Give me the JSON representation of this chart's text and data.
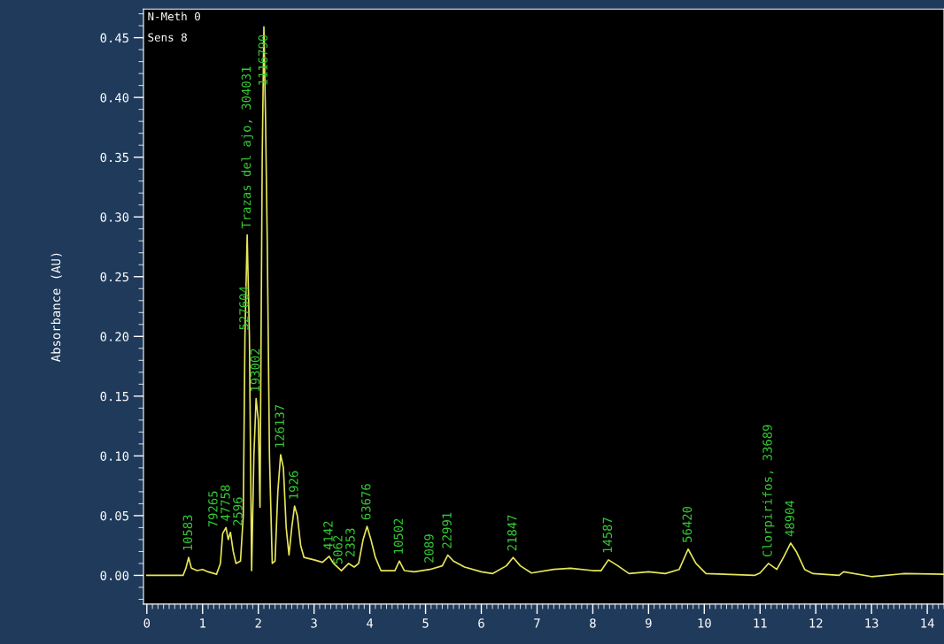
{
  "chart_data": {
    "type": "line",
    "ylabel": "Absorbance (AU)",
    "xlim": [
      -0.06,
      14.3
    ],
    "ylim": [
      -0.024,
      0.474
    ],
    "xticks": [
      0,
      1,
      2,
      3,
      4,
      5,
      6,
      7,
      8,
      9,
      10,
      11,
      12,
      13,
      14
    ],
    "yticks": [
      {
        "value": 0,
        "label": "0.00"
      },
      {
        "value": 0.05,
        "label": "0.05"
      },
      {
        "value": 0.1,
        "label": "0.10"
      },
      {
        "value": 0.15,
        "label": "0.15"
      },
      {
        "value": 0.2,
        "label": "0.20"
      },
      {
        "value": 0.25,
        "label": "0.25"
      },
      {
        "value": 0.3,
        "label": "0.30"
      },
      {
        "value": 0.35,
        "label": "0.35"
      },
      {
        "value": 0.4,
        "label": "0.40"
      },
      {
        "value": 0.45,
        "label": "0.45"
      }
    ],
    "grid": false,
    "marker": "none",
    "line_style": "solid",
    "series": [
      {
        "color": "#e6e65c",
        "x": [
          0,
          0.65,
          0.7,
          0.75,
          0.8,
          0.9,
          1.0,
          1.1,
          1.25,
          1.32,
          1.36,
          1.42,
          1.46,
          1.5,
          1.55,
          1.6,
          1.68,
          1.73,
          1.76,
          1.8,
          1.84,
          1.88,
          1.92,
          1.96,
          2.0,
          2.03,
          2.07,
          2.1,
          2.13,
          2.16,
          2.2,
          2.25,
          2.3,
          2.35,
          2.4,
          2.45,
          2.5,
          2.55,
          2.6,
          2.65,
          2.7,
          2.76,
          2.82,
          3.0,
          3.15,
          3.27,
          3.35,
          3.49,
          3.62,
          3.72,
          3.8,
          3.88,
          3.95,
          4.02,
          4.1,
          4.2,
          4.45,
          4.53,
          4.62,
          4.8,
          5.08,
          5.3,
          5.4,
          5.5,
          5.7,
          6.0,
          6.2,
          6.45,
          6.57,
          6.7,
          6.9,
          7.3,
          7.6,
          8.0,
          8.15,
          8.28,
          8.45,
          8.65,
          9.0,
          9.3,
          9.55,
          9.71,
          9.85,
          10.03,
          10.9,
          11.0,
          11.15,
          11.3,
          11.42,
          11.55,
          11.65,
          11.8,
          11.95,
          12.42,
          12.5,
          13.0,
          13.6,
          14.3
        ],
        "values": [
          0,
          0,
          0.006,
          0.015,
          0.006,
          0.004,
          0.005,
          0.003,
          0.001,
          0.01,
          0.035,
          0.04,
          0.03,
          0.036,
          0.02,
          0.01,
          0.012,
          0.05,
          0.2,
          0.285,
          0.2,
          0.004,
          0.1,
          0.148,
          0.13,
          0.057,
          0.35,
          0.459,
          0.38,
          0.28,
          0.1,
          0.01,
          0.012,
          0.07,
          0.101,
          0.09,
          0.04,
          0.017,
          0.04,
          0.058,
          0.05,
          0.025,
          0.015,
          0.013,
          0.011,
          0.016,
          0.01,
          0.004,
          0.01,
          0.007,
          0.01,
          0.03,
          0.041,
          0.03,
          0.015,
          0.004,
          0.004,
          0.012,
          0.004,
          0.003,
          0.005,
          0.008,
          0.017,
          0.012,
          0.007,
          0.003,
          0.0015,
          0.008,
          0.015,
          0.008,
          0.002,
          0.005,
          0.006,
          0.004,
          0.004,
          0.013,
          0.008,
          0.0015,
          0.003,
          0.0015,
          0.005,
          0.022,
          0.01,
          0.0015,
          0,
          0.002,
          0.01,
          0.005,
          0.015,
          0.027,
          0.02,
          0.005,
          0.0015,
          0,
          0.003,
          -0.001,
          0.0015,
          0.001
        ]
      }
    ],
    "annotations": [
      "N-Meth 0",
      "Sens 8",
      {
        "text": "10583",
        "x": 0.75,
        "y": 0.015
      },
      {
        "text": "79265",
        "x": 1.36,
        "y": 0.035
      },
      {
        "text": "47758",
        "x": 1.42,
        "y": 0.04
      },
      {
        "text": "2596",
        "x": 1.5,
        "y": 0.036
      },
      {
        "text": "527604",
        "x": 1.76,
        "y": 0.2
      },
      {
        "text": "Trazas del ajo, 304031",
        "x": 1.8,
        "y": 0.285
      },
      {
        "text": "1116790",
        "x": 2.1,
        "y": 0.459
      },
      {
        "text": "193002",
        "x": 1.96,
        "y": 0.148
      },
      {
        "text": "126137",
        "x": 2.4,
        "y": 0.101
      },
      {
        "text": "1926",
        "x": 2.65,
        "y": 0.058
      },
      {
        "text": "4142",
        "x": 3.27,
        "y": 0.016
      },
      {
        "text": "5062",
        "x": 3.49,
        "y": 0.004
      },
      {
        "text": "2353",
        "x": 3.62,
        "y": 0.01
      },
      {
        "text": "63676",
        "x": 3.95,
        "y": 0.041
      },
      {
        "text": "10502",
        "x": 4.53,
        "y": 0.012
      },
      {
        "text": "2089",
        "x": 5.08,
        "y": 0.005
      },
      {
        "text": "22991",
        "x": 5.4,
        "y": 0.017
      },
      {
        "text": "21847",
        "x": 6.57,
        "y": 0.015
      },
      {
        "text": "14587",
        "x": 8.28,
        "y": 0.013
      },
      {
        "text": "56420",
        "x": 9.71,
        "y": 0.022
      },
      {
        "text": "Clorpirifos, 33689",
        "x": 11.15,
        "y": 0.01
      },
      {
        "text": "48904",
        "x": 11.55,
        "y": 0.027
      }
    ]
  }
}
